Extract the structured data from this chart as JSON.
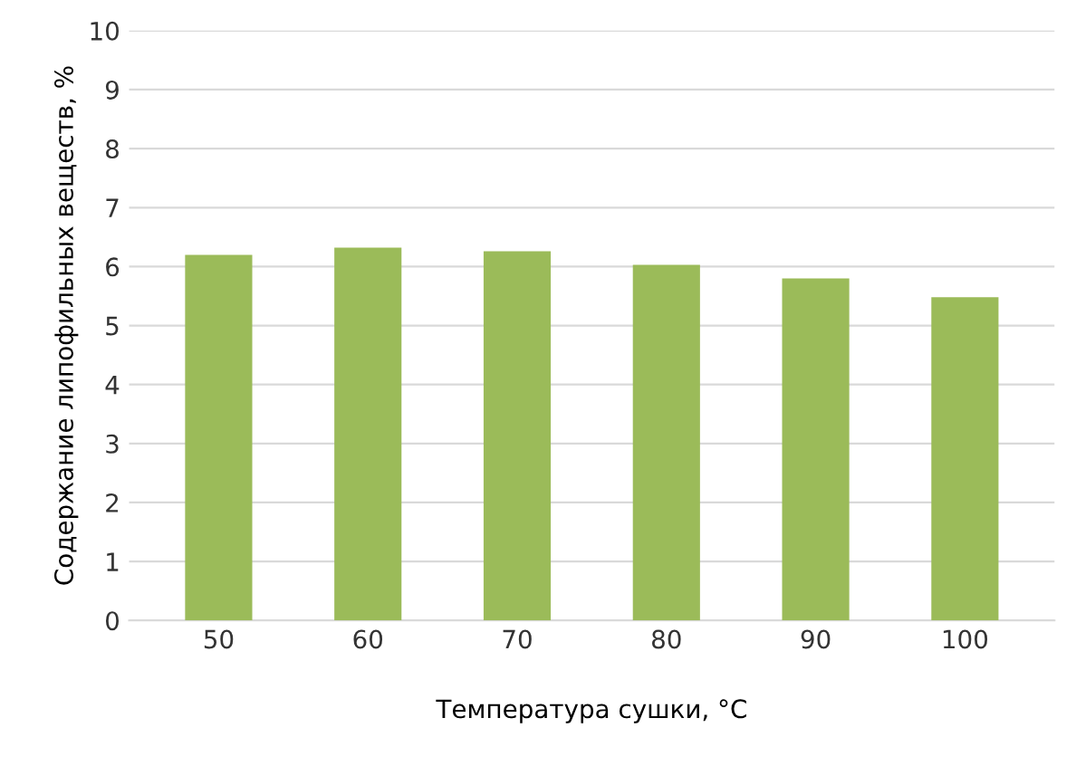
{
  "chart_data": {
    "type": "bar",
    "xlabel": "Температура сушки, °C",
    "ylabel": "Содержание липофильных веществ, %",
    "categories": [
      "50",
      "60",
      "70",
      "80",
      "90",
      "100"
    ],
    "values": [
      6.2,
      6.32,
      6.26,
      6.03,
      5.8,
      5.48
    ],
    "color": "#9bbb59",
    "ylim": [
      0,
      10
    ],
    "yticks": [
      0,
      1,
      2,
      3,
      4,
      5,
      6,
      7,
      8,
      9,
      10
    ],
    "grid": "y",
    "legend": false
  }
}
